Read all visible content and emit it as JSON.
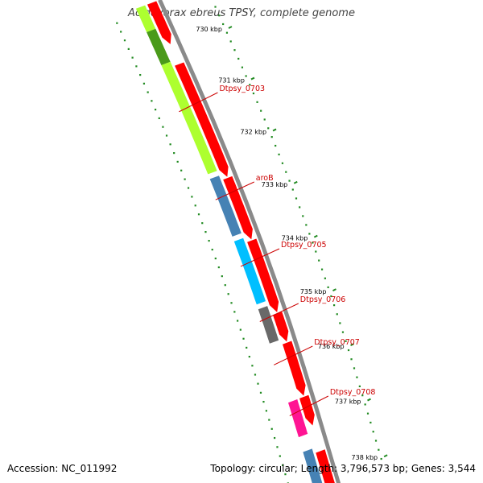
{
  "title": "Acidovorax ebreus TPSY, complete genome",
  "footer": {
    "accession": "Accession: NC_011992",
    "summary": "Topology: circular; Length: 3,796,573 bp; Genes: 3,544"
  },
  "ticks": [
    "730 kbp",
    "731 kbp",
    "732 kbp",
    "733 kbp",
    "734 kbp",
    "735 kbp",
    "736 kbp",
    "737 kbp",
    "738 kbp"
  ],
  "gene_labels": [
    "Dtpsy_0703",
    "aroB",
    "Dtpsy_0705",
    "Dtpsy_0706",
    "Dtpsy_0707",
    "Dtpsy_0708"
  ],
  "colors": {
    "backbone": "#8a8a8a",
    "cds": "#ff0000",
    "tick_dots": "#228b22",
    "feature_lime": "#adff2f",
    "feature_lime_dark": "#4a9a1a",
    "feature_steelblue": "#4682b4",
    "feature_deepskyblue": "#00bfff",
    "feature_dimgray": "#696969",
    "feature_deeppink": "#ff1493",
    "label_red": "#cc0000"
  }
}
